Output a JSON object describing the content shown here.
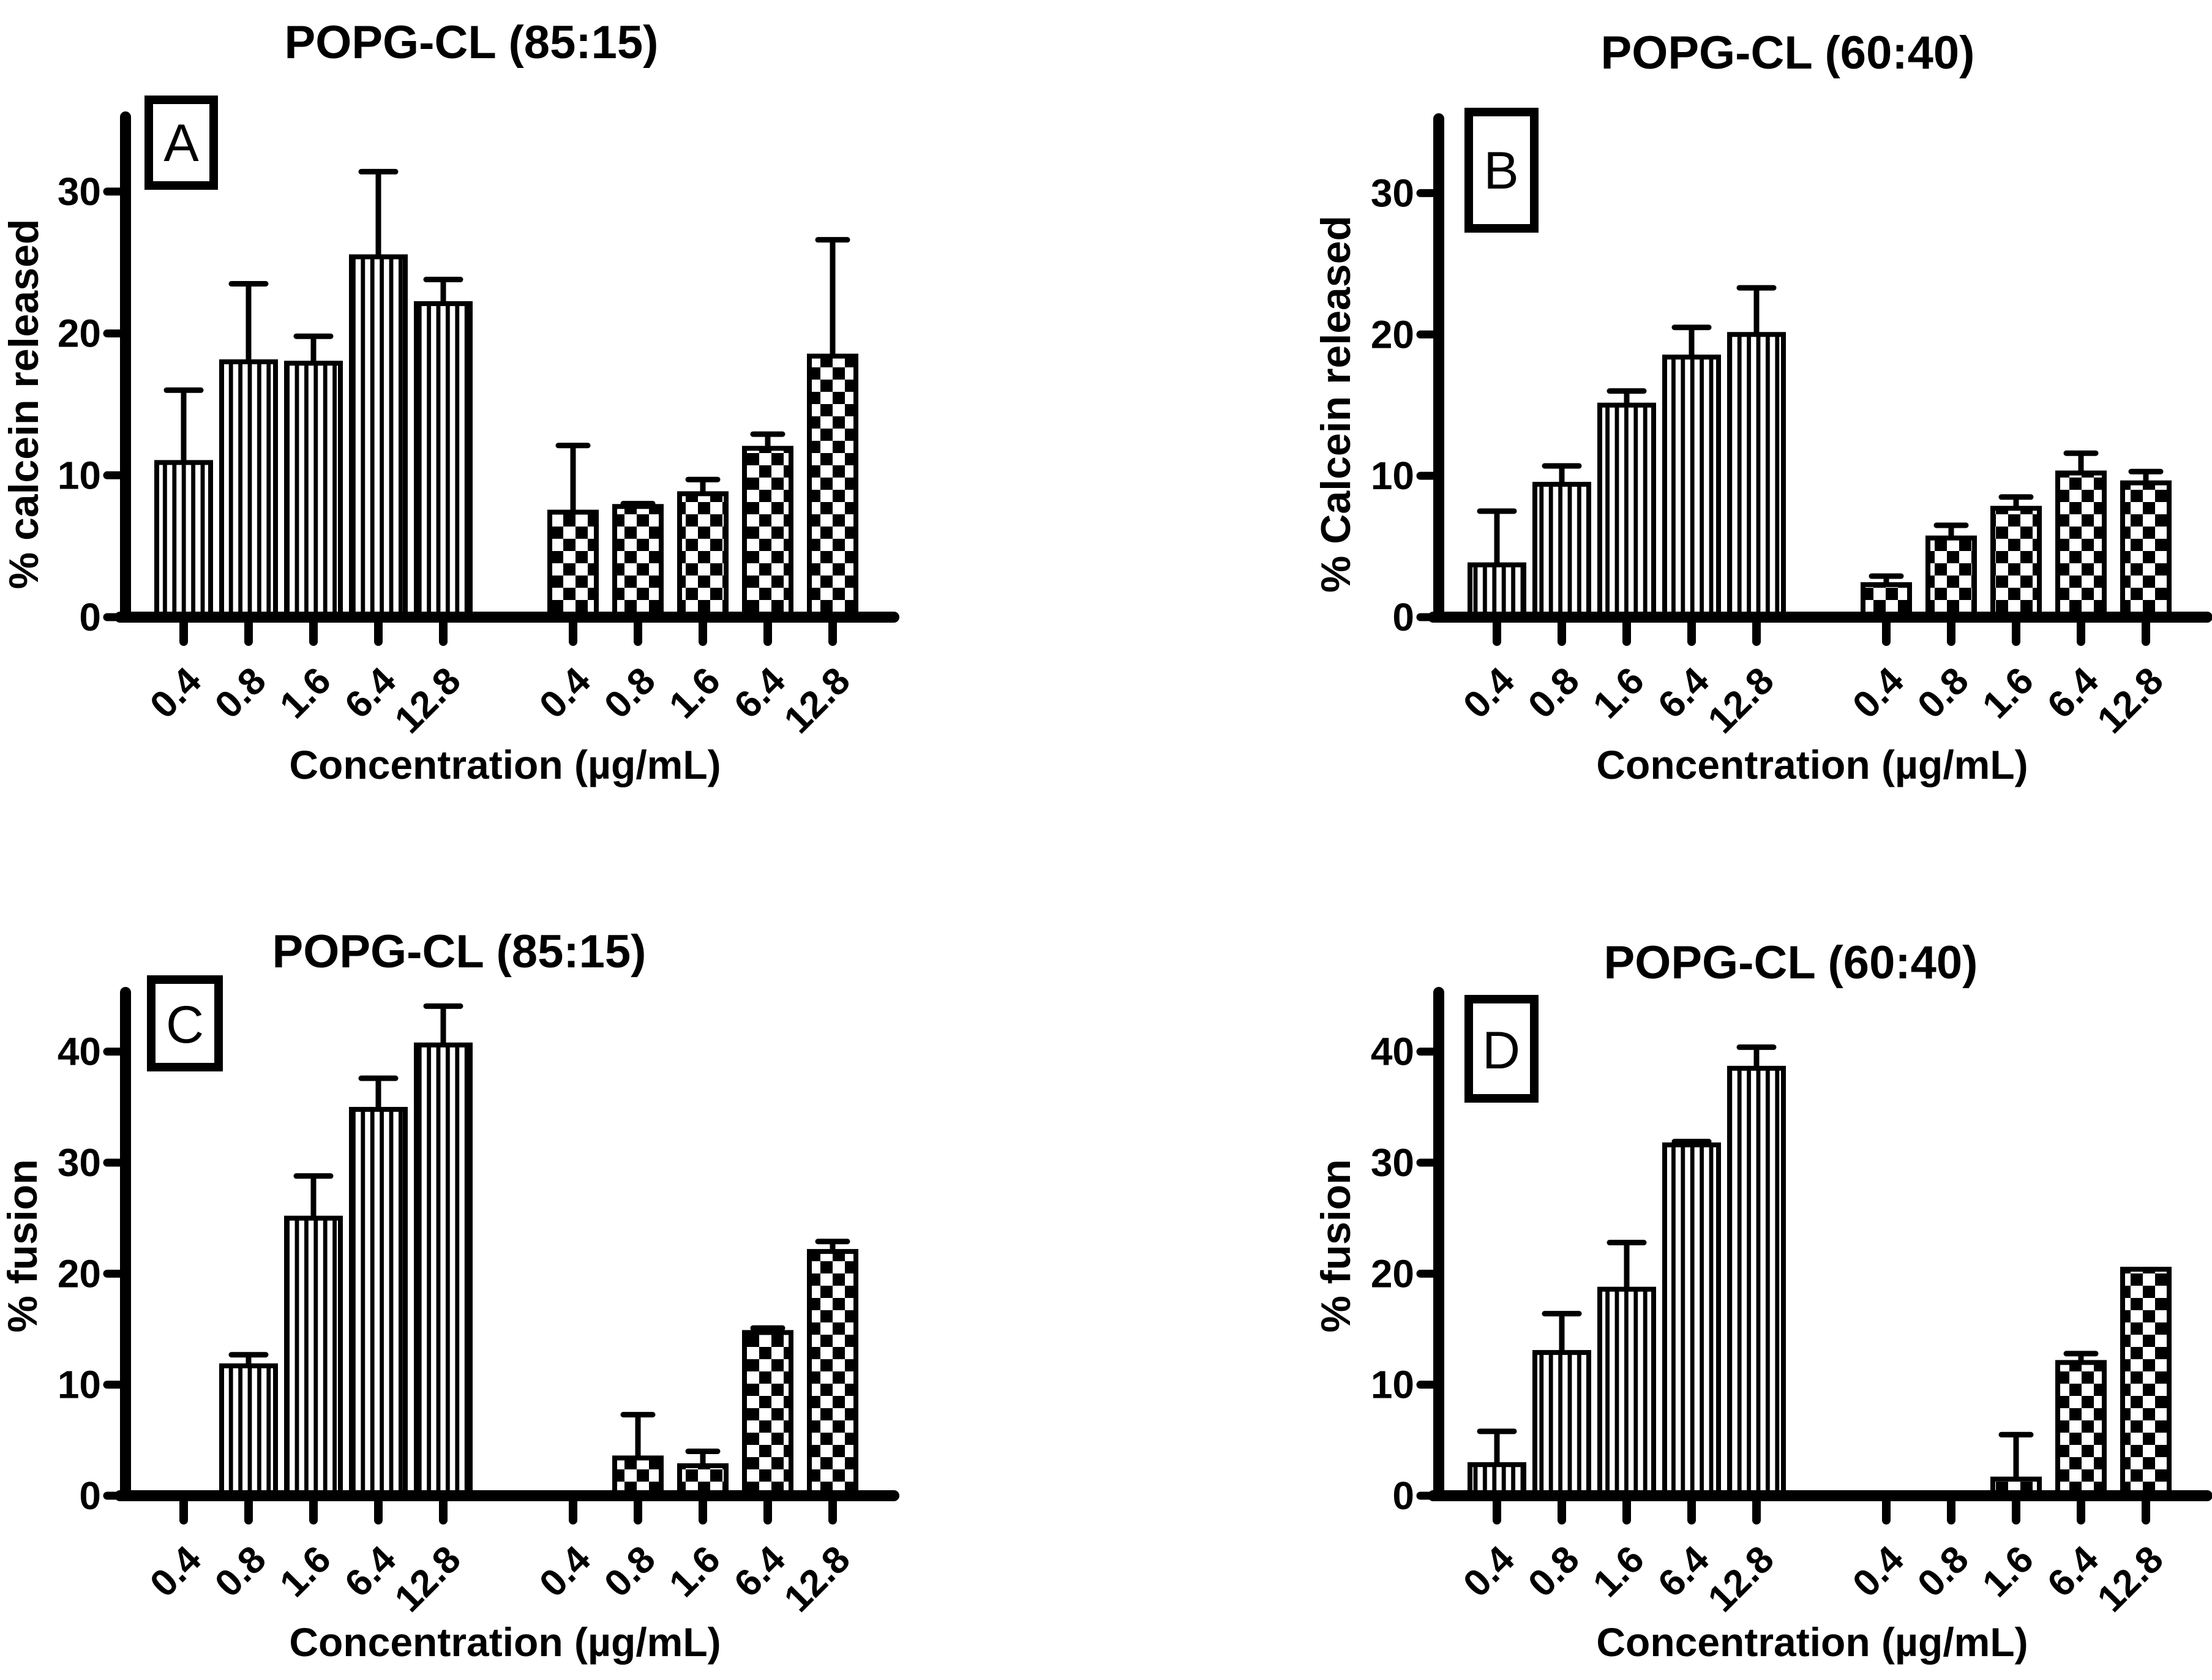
{
  "figure": {
    "background": "#ffffff",
    "ink": "#000000",
    "description": "Four-panel bar figure with SD error bars, striped bars (left group) and checkered bars (right group) per panel"
  },
  "chart_data": [
    {
      "type": "bar",
      "panel_label": "A",
      "title": "POPG-CL (85:15)",
      "ylabel": "% calcein released",
      "xlabel": "Concentration (µg/mL)",
      "ylim": [
        0,
        35
      ],
      "yticks": [
        0,
        10,
        20,
        30
      ],
      "categories": [
        "0.4",
        "0.8",
        "1.6",
        "6.4",
        "12.8"
      ],
      "grid": false,
      "legend": "none",
      "error_bars": "upper-sd",
      "series": [
        {
          "name": "striped-group",
          "pattern": "vertical-stripes",
          "values": [
            10.9,
            18.0,
            17.9,
            25.4,
            22.1
          ],
          "errors": [
            5.1,
            5.5,
            1.9,
            6.0,
            1.7
          ]
        },
        {
          "name": "checkered-group",
          "pattern": "checkerboard",
          "values": [
            7.4,
            7.8,
            8.7,
            11.9,
            18.4
          ],
          "errors": [
            4.7,
            0.2,
            1.0,
            1.0,
            8.2
          ]
        }
      ]
    },
    {
      "type": "bar",
      "panel_label": "B",
      "title": "POPG-CL (60:40)",
      "ylabel": "% Calcein released",
      "xlabel": "Concentration (µg/mL)",
      "ylim": [
        0,
        35
      ],
      "yticks": [
        0,
        10,
        20,
        30
      ],
      "categories": [
        "0.4",
        "0.8",
        "1.6",
        "6.4",
        "12.8"
      ],
      "grid": false,
      "legend": "none",
      "error_bars": "upper-sd",
      "series": [
        {
          "name": "striped-group",
          "pattern": "vertical-stripes",
          "values": [
            3.7,
            9.4,
            15.0,
            18.4,
            20.0
          ],
          "errors": [
            3.8,
            1.3,
            1.0,
            2.1,
            3.3
          ]
        },
        {
          "name": "checkered-group",
          "pattern": "checkerboard",
          "values": [
            2.3,
            5.6,
            7.7,
            10.2,
            9.5
          ],
          "errors": [
            0.6,
            0.9,
            0.8,
            1.4,
            0.8
          ]
        }
      ]
    },
    {
      "type": "bar",
      "panel_label": "C",
      "title": "POPG-CL (85:15)",
      "ylabel": "% fusion",
      "xlabel": "Concentration (µg/mL)",
      "ylim": [
        0,
        45
      ],
      "yticks": [
        0,
        10,
        20,
        30,
        40
      ],
      "categories": [
        "0.4",
        "0.8",
        "1.6",
        "6.4",
        "12.8"
      ],
      "grid": false,
      "legend": "none",
      "error_bars": "upper-sd",
      "series": [
        {
          "name": "striped-group",
          "pattern": "vertical-stripes",
          "values": [
            0,
            11.7,
            25.0,
            34.8,
            40.6
          ],
          "errors": [
            0,
            1.0,
            3.8,
            2.8,
            3.5
          ]
        },
        {
          "name": "checkered-group",
          "pattern": "checkerboard",
          "values": [
            0,
            3.4,
            2.7,
            14.7,
            22.0
          ],
          "errors": [
            0,
            3.9,
            1.3,
            0.4,
            0.9
          ]
        }
      ]
    },
    {
      "type": "bar",
      "panel_label": "D",
      "title": "POPG-CL (60:40)",
      "ylabel": "% fusion",
      "xlabel": "Concentration (µg/mL)",
      "ylim": [
        0,
        45
      ],
      "yticks": [
        0,
        10,
        20,
        30,
        40
      ],
      "categories": [
        "0.4",
        "0.8",
        "1.6",
        "6.4",
        "12.8"
      ],
      "grid": false,
      "legend": "none",
      "error_bars": "upper-sd",
      "series": [
        {
          "name": "striped-group",
          "pattern": "vertical-stripes",
          "values": [
            2.8,
            12.9,
            18.6,
            31.6,
            38.5
          ],
          "errors": [
            3.0,
            3.5,
            4.2,
            0.3,
            1.9
          ]
        },
        {
          "name": "checkered-group",
          "pattern": "checkerboard",
          "values": [
            0,
            0,
            1.5,
            12.0,
            20.4
          ],
          "errors": [
            0,
            0,
            4.0,
            0.8,
            0
          ]
        }
      ]
    }
  ]
}
